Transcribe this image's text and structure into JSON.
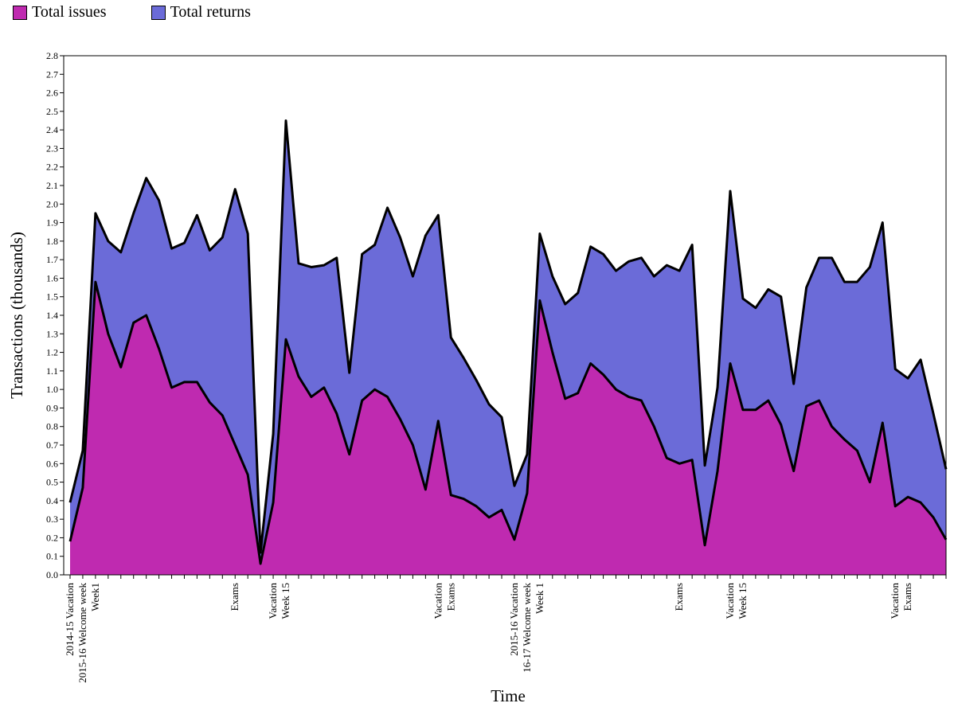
{
  "chart_data": {
    "type": "area",
    "stacked": true,
    "xlabel": "Time",
    "ylabel": "Transactions (thousands)",
    "ylim": [
      0,
      2.8
    ],
    "y_ticks": [
      "0.0",
      "0.1",
      "0.2",
      "0.3",
      "0.4",
      "0.5",
      "0.6",
      "0.7",
      "0.8",
      "0.9",
      "1.0",
      "1.1",
      "1.2",
      "1.3",
      "1.4",
      "1.5",
      "1.6",
      "1.7",
      "1.8",
      "1.9",
      "2.0",
      "2.1",
      "2.2",
      "2.3",
      "2.4",
      "2.5",
      "2.6",
      "2.7",
      "2.8"
    ],
    "legend_position": "top-left",
    "colors": {
      "issues": "#bf2ab0",
      "returns": "#6b6bd8",
      "line": "#000000"
    },
    "x_count": 70,
    "x_labels": [
      {
        "index": 0,
        "label": "2014-15 Vacation"
      },
      {
        "index": 1,
        "label": "2015-16 Welcome week"
      },
      {
        "index": 2,
        "label": "Week1"
      },
      {
        "index": 13,
        "label": "Exams"
      },
      {
        "index": 16,
        "label": "Vacation"
      },
      {
        "index": 17,
        "label": "Week 15"
      },
      {
        "index": 29,
        "label": "Vacation"
      },
      {
        "index": 30,
        "label": "Exams"
      },
      {
        "index": 35,
        "label": "2015-16 Vacation"
      },
      {
        "index": 36,
        "label": "16-17 Welcome week"
      },
      {
        "index": 37,
        "label": "Week 1"
      },
      {
        "index": 48,
        "label": "Exams"
      },
      {
        "index": 52,
        "label": "Vacation"
      },
      {
        "index": 53,
        "label": "Week 15"
      },
      {
        "index": 65,
        "label": "Vacation"
      },
      {
        "index": 66,
        "label": "Exams"
      }
    ],
    "series": [
      {
        "name": "Total issues",
        "values": [
          0.18,
          0.47,
          1.58,
          1.3,
          1.12,
          1.36,
          1.4,
          1.22,
          1.01,
          1.04,
          1.04,
          0.93,
          0.86,
          0.7,
          0.54,
          0.06,
          0.39,
          1.27,
          1.07,
          0.96,
          1.01,
          0.87,
          0.65,
          0.94,
          1.0,
          0.96,
          0.84,
          0.7,
          0.46,
          0.83,
          0.43,
          0.41,
          0.37,
          0.31,
          0.35,
          0.19,
          0.44,
          1.48,
          1.2,
          0.95,
          0.98,
          1.14,
          1.08,
          1.0,
          0.96,
          0.94,
          0.8,
          0.63,
          0.6,
          0.62,
          0.16,
          0.56,
          1.14,
          0.89,
          0.89,
          0.94,
          0.81,
          0.56,
          0.91,
          0.94,
          0.8,
          0.73,
          0.67,
          0.5,
          0.82,
          0.37,
          0.42,
          0.39,
          0.31,
          0.19
        ]
      },
      {
        "name": "Total returns",
        "values": [
          0.21,
          0.2,
          0.37,
          0.5,
          0.62,
          0.59,
          0.74,
          0.8,
          0.75,
          0.75,
          0.9,
          0.82,
          0.96,
          1.38,
          1.3,
          0.06,
          0.37,
          1.18,
          0.61,
          0.7,
          0.66,
          0.84,
          0.44,
          0.79,
          0.78,
          1.02,
          0.98,
          0.91,
          1.37,
          1.11,
          0.85,
          0.76,
          0.68,
          0.61,
          0.5,
          0.29,
          0.21,
          0.36,
          0.41,
          0.51,
          0.54,
          0.63,
          0.65,
          0.64,
          0.73,
          0.77,
          0.81,
          1.04,
          1.04,
          1.16,
          0.43,
          0.45,
          0.93,
          0.6,
          0.55,
          0.6,
          0.69,
          0.47,
          0.64,
          0.77,
          0.91,
          0.85,
          0.91,
          1.16,
          1.08,
          0.74,
          0.64,
          0.77,
          0.56,
          0.38
        ]
      }
    ]
  }
}
